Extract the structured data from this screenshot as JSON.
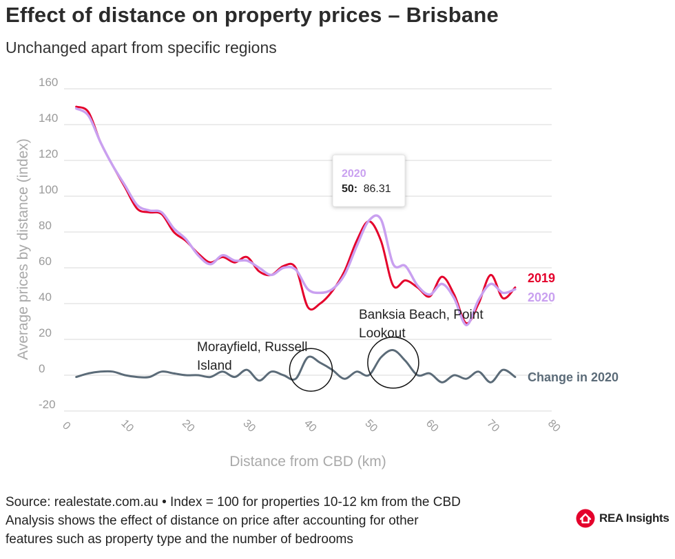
{
  "title": "Effect of distance on property prices – Brisbane",
  "subtitle": "Unchanged apart from specific regions",
  "footer": {
    "line1": "Source: realestate.com.au • Index = 100 for properties 10-12 km from the CBD",
    "line2": "Analysis shows the effect of distance on price after accounting for other",
    "line3": "features such as property type and the number of bedrooms"
  },
  "brand": {
    "name": "REA Insights",
    "color": "#e4002b"
  },
  "tooltip": {
    "series": "2020",
    "key": "50:",
    "value": "86.31"
  },
  "chart_data": {
    "type": "line",
    "xlabel": "Distance from CBD (km)",
    "ylabel": "Average prices by distance (index)",
    "xlim": [
      0,
      80
    ],
    "ylim": [
      -20,
      160
    ],
    "x_ticks": [
      0,
      10,
      20,
      30,
      40,
      50,
      60,
      70,
      80
    ],
    "y_ticks": [
      -20,
      0,
      20,
      40,
      60,
      80,
      100,
      120,
      140,
      160
    ],
    "y_tick_labels": [
      "-20",
      "0",
      "20",
      "40",
      "60",
      "80",
      "100",
      "120",
      "140",
      "160"
    ],
    "grid": true,
    "series": [
      {
        "name": "2019",
        "label": "2019",
        "color": "#e4002b",
        "x": [
          2,
          4,
          6,
          8,
          10,
          12,
          14,
          16,
          18,
          20,
          22,
          24,
          26,
          28,
          30,
          32,
          34,
          36,
          38,
          40,
          42,
          44,
          46,
          48,
          50,
          52,
          54,
          56,
          58,
          60,
          62,
          64,
          66,
          68,
          70,
          72,
          74
        ],
        "y": [
          150,
          147,
          130,
          117,
          105,
          93,
          91,
          90,
          80,
          75,
          68,
          63,
          66,
          63,
          66,
          58,
          56,
          61,
          60,
          38,
          40,
          47,
          58,
          75,
          86,
          75,
          50,
          53,
          49,
          44,
          55,
          45,
          29,
          40,
          56,
          43,
          49
        ]
      },
      {
        "name": "2020",
        "label": "2020",
        "color": "#c9a0f0",
        "x": [
          2,
          4,
          6,
          8,
          10,
          12,
          14,
          16,
          18,
          20,
          22,
          24,
          26,
          28,
          30,
          32,
          34,
          36,
          38,
          40,
          42,
          44,
          46,
          48,
          50,
          52,
          54,
          56,
          58,
          60,
          62,
          64,
          66,
          68,
          70,
          72,
          74
        ],
        "y": [
          149,
          145,
          130,
          117,
          106,
          95,
          92,
          91,
          82,
          76,
          67,
          62,
          67,
          64,
          64,
          60,
          56,
          60,
          59,
          48,
          46,
          48,
          56,
          72,
          86.31,
          87,
          62,
          61,
          50,
          45,
          51,
          43,
          28,
          42,
          51,
          46,
          48
        ]
      },
      {
        "name": "Change in 2020",
        "label": "Change in 2020",
        "color": "#5b6b78",
        "x": [
          2,
          4,
          6,
          8,
          10,
          12,
          14,
          16,
          18,
          20,
          22,
          24,
          26,
          28,
          30,
          32,
          34,
          36,
          38,
          40,
          42,
          44,
          46,
          48,
          50,
          52,
          54,
          56,
          58,
          60,
          62,
          64,
          66,
          68,
          70,
          72,
          74
        ],
        "y": [
          -1,
          1,
          2,
          2,
          0,
          -1,
          -1,
          2,
          1,
          0,
          0,
          -1,
          2,
          -1,
          3,
          -3,
          2,
          0,
          -2,
          10,
          7,
          3,
          -2,
          2,
          0,
          10,
          14,
          8,
          0,
          1,
          -4,
          0,
          -2,
          2,
          -4,
          3,
          -1
        ]
      }
    ],
    "annotations": [
      {
        "text_line1": "Morayfield, Russell",
        "text_line2": "Island",
        "x": 40.5,
        "y": 3
      },
      {
        "text_line1": "Banksia Beach, Point",
        "text_line2": "Lookout",
        "x": 54,
        "y": 7
      }
    ]
  }
}
